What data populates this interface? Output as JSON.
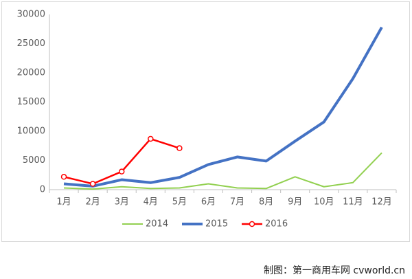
{
  "chart_data": {
    "type": "line",
    "categories": [
      "1月",
      "2月",
      "3月",
      "4月",
      "5月",
      "6月",
      "7月",
      "8月",
      "9月",
      "10月",
      "11月",
      "12月"
    ],
    "series": [
      {
        "name": "2014",
        "color": "#92d050",
        "values": [
          300,
          100,
          500,
          200,
          300,
          1000,
          300,
          200,
          2200,
          500,
          1200,
          6300
        ]
      },
      {
        "name": "2015",
        "color": "#4472c4",
        "values": [
          1000,
          600,
          1700,
          1200,
          2100,
          4300,
          5600,
          4900,
          8300,
          11600,
          19000,
          27800
        ]
      },
      {
        "name": "2016",
        "color": "#ff0000",
        "values": [
          2200,
          1000,
          3100,
          8700,
          7100,
          null,
          null,
          null,
          null,
          null,
          null,
          null
        ]
      }
    ],
    "ylim": [
      0,
      30000
    ],
    "yticks": [
      0,
      5000,
      10000,
      15000,
      20000,
      25000,
      30000
    ],
    "grid": false,
    "legend": "bottom",
    "source": "制图：第一商用车网 cvworld.cn"
  }
}
